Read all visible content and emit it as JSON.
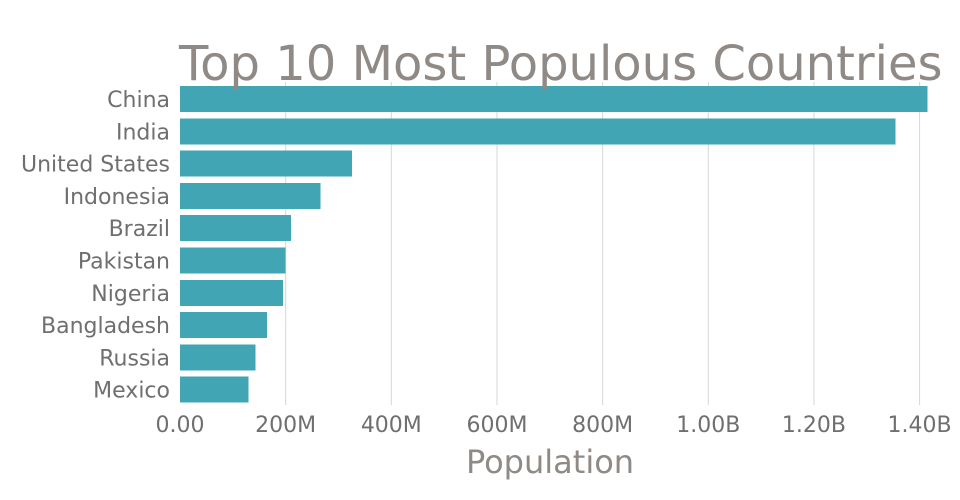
{
  "chart_data": {
    "type": "bar",
    "orientation": "horizontal",
    "title": "Top 10 Most Populous Countries",
    "xlabel": "Population",
    "ylabel": "",
    "categories": [
      "China",
      "India",
      "United States",
      "Indonesia",
      "Brazil",
      "Pakistan",
      "Nigeria",
      "Bangladesh",
      "Russia",
      "Mexico"
    ],
    "values": [
      1415000000,
      1354000000,
      326000000,
      266000000,
      210000000,
      200000000,
      195000000,
      165000000,
      143000000,
      130000000
    ],
    "xlim": [
      0,
      1450000000
    ],
    "xticks": [
      0,
      200000000,
      400000000,
      600000000,
      800000000,
      1000000000,
      1200000000,
      1400000000
    ],
    "xtick_labels": [
      "0.00",
      "200M",
      "400M",
      "600M",
      "800M",
      "1.00B",
      "1.20B",
      "1.40B"
    ],
    "grid": "vertical",
    "legend": "none",
    "bar_color": "#42a5b3"
  }
}
